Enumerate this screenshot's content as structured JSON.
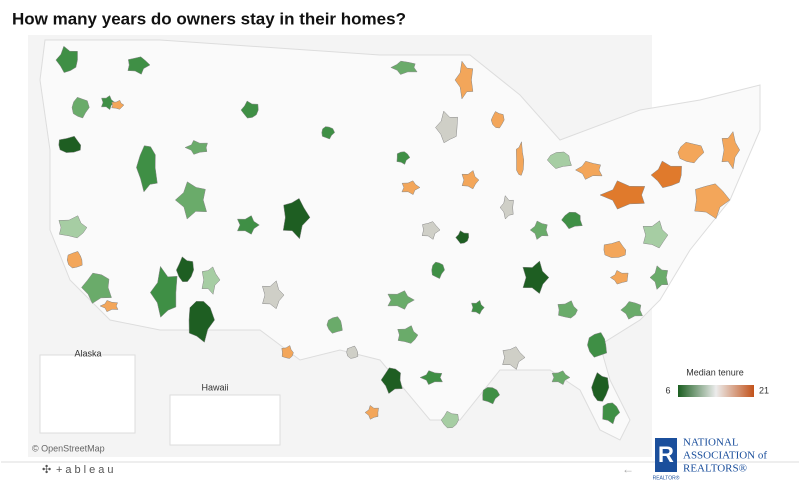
{
  "title": "How many years do owners stay in their homes?",
  "insets": [
    "Alaska",
    "Hawaii"
  ],
  "legend": {
    "title": "Median tenure",
    "min": 6,
    "max": 21,
    "colors": [
      "#1b5e20",
      "#ececec",
      "#c2521a"
    ]
  },
  "attribution": "© OpenStreetMap",
  "footer": {
    "brand": "+ableau"
  },
  "logo": {
    "mark": "R",
    "small": "REALTOR®",
    "lines": [
      "NATIONAL",
      "ASSOCIATION of",
      "REALTORS®"
    ]
  }
}
